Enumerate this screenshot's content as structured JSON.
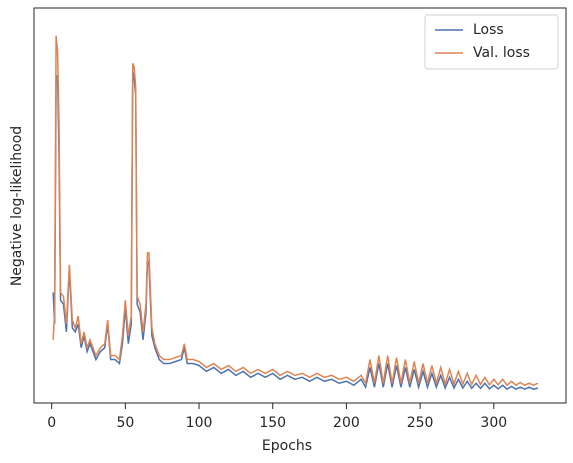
{
  "chart_data": {
    "type": "line",
    "xlabel": "Epochs",
    "ylabel": "Negative log-likelihood",
    "x": [
      1,
      2,
      3,
      4,
      5,
      6,
      8,
      10,
      12,
      14,
      16,
      18,
      20,
      22,
      24,
      26,
      28,
      30,
      33,
      36,
      38,
      40,
      43,
      46,
      48,
      50,
      52,
      54,
      55,
      56,
      57,
      58,
      60,
      62,
      64,
      65,
      66,
      68,
      70,
      73,
      76,
      80,
      84,
      88,
      90,
      92,
      96,
      100,
      105,
      110,
      115,
      120,
      125,
      130,
      135,
      140,
      145,
      150,
      155,
      160,
      165,
      170,
      175,
      180,
      185,
      190,
      195,
      200,
      205,
      210,
      213,
      216,
      219,
      222,
      225,
      228,
      231,
      234,
      237,
      240,
      243,
      246,
      249,
      252,
      255,
      258,
      261,
      264,
      267,
      270,
      273,
      276,
      279,
      282,
      285,
      288,
      291,
      294,
      297,
      300,
      303,
      306,
      309,
      312,
      315,
      318,
      321,
      324,
      327,
      330
    ],
    "series": [
      {
        "name": "Loss",
        "color": "#4c72b0",
        "values": [
          28,
          20,
          82,
          83,
          62,
          26,
          25,
          18,
          34,
          19,
          18,
          20,
          14,
          17,
          13,
          15,
          13,
          11,
          13,
          14,
          20,
          11,
          11,
          10,
          15,
          24,
          15,
          20,
          84,
          82,
          78,
          25,
          23,
          16,
          23,
          36,
          35,
          17,
          14,
          11,
          10,
          10,
          10.5,
          11,
          14,
          10,
          10,
          9.5,
          8,
          9,
          7.5,
          8.5,
          7,
          8,
          6.5,
          7.5,
          6.5,
          7.5,
          6,
          7,
          6,
          6.5,
          5.5,
          6.5,
          5.5,
          6,
          5,
          5.5,
          4.5,
          6,
          4,
          9,
          4,
          10,
          4,
          10,
          4,
          9.5,
          4,
          9,
          4,
          8.5,
          4,
          8,
          4,
          7.5,
          4,
          7,
          3.8,
          6.5,
          3.8,
          6,
          3.8,
          5.5,
          3.7,
          5,
          3.7,
          5,
          3.6,
          4.5,
          3.6,
          4.5,
          3.5,
          4.2,
          3.5,
          4,
          3.5,
          4,
          3.5,
          3.8
        ]
      },
      {
        "name": "Val. loss",
        "color": "#dd8452",
        "values": [
          16,
          23,
          93,
          89,
          70,
          28,
          27,
          20,
          35,
          21,
          19,
          22,
          15,
          18,
          14,
          16,
          14,
          12,
          14,
          15,
          21,
          12,
          12,
          11,
          17,
          26,
          17,
          22,
          86,
          85,
          80,
          27,
          25,
          18,
          25,
          38,
          38,
          19,
          15,
          12,
          11,
          11,
          11.5,
          12,
          15,
          11,
          11,
          10.5,
          9,
          10,
          8.5,
          9.5,
          8,
          9,
          7.5,
          8.5,
          7.5,
          8.5,
          7,
          8,
          7,
          7.5,
          6.5,
          7.5,
          6.5,
          7,
          6,
          6.5,
          5.5,
          7,
          5,
          11,
          5,
          12,
          5,
          12,
          5,
          11.5,
          5,
          11,
          5,
          10.5,
          5,
          10,
          5,
          9.5,
          5,
          9,
          4.8,
          8.5,
          4.8,
          8,
          4.8,
          7.5,
          4.7,
          7,
          4.7,
          6.5,
          4.6,
          6,
          4.6,
          6,
          4.5,
          5.5,
          4.5,
          5.2,
          4.5,
          5,
          4.5,
          5
        ]
      }
    ],
    "xlim": [
      -12,
      349
    ],
    "xticks": [
      0,
      50,
      100,
      150,
      200,
      250,
      300
    ],
    "ylim": [
      0,
      100
    ],
    "legend": "upper right",
    "grid": false
  }
}
